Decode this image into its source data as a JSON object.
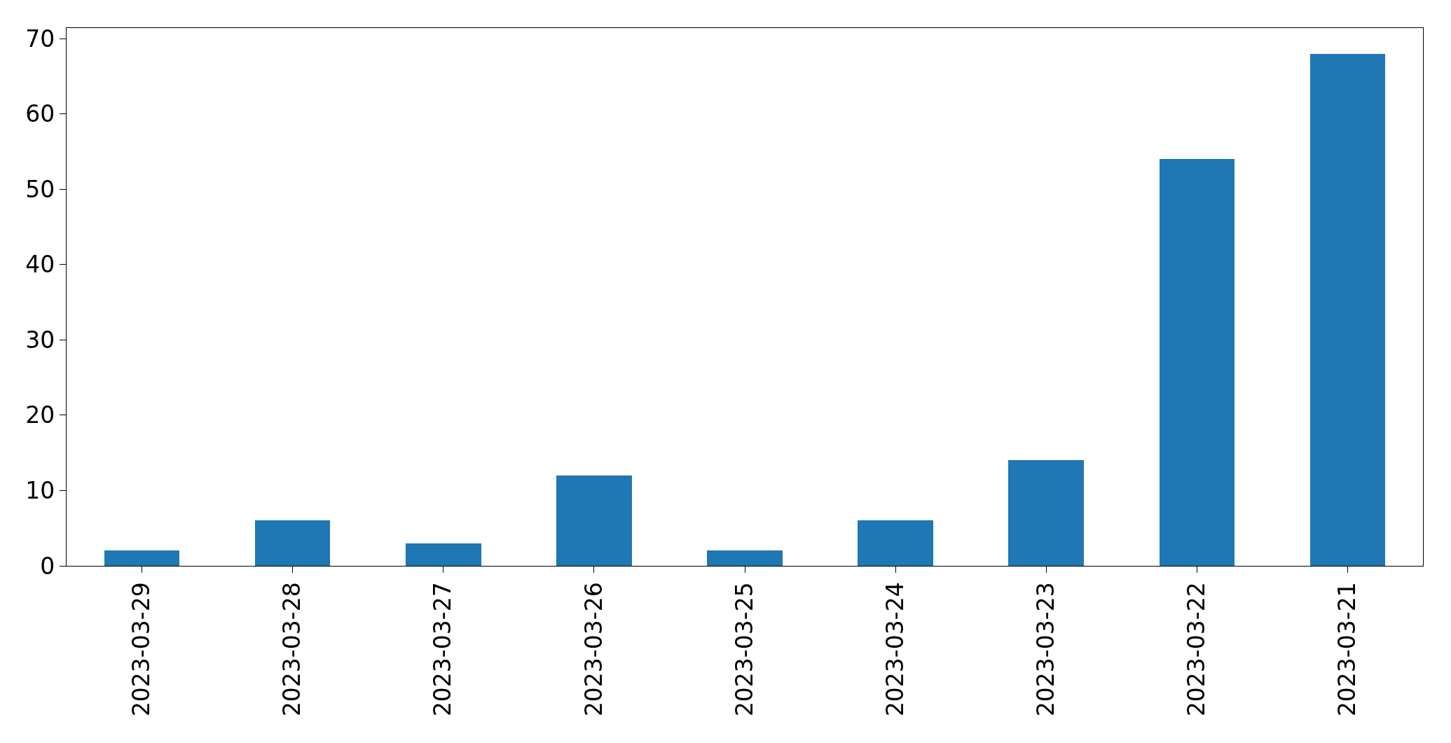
{
  "chart_data": {
    "type": "bar",
    "categories": [
      "2023-03-29",
      "2023-03-28",
      "2023-03-27",
      "2023-03-26",
      "2023-03-25",
      "2023-03-24",
      "2023-03-23",
      "2023-03-22",
      "2023-03-21"
    ],
    "values": [
      2,
      6,
      3,
      12,
      2,
      6,
      14,
      54,
      68
    ],
    "color": "#1f77b4",
    "ylim": [
      0,
      71.4
    ],
    "yticks": [
      0,
      10,
      20,
      30,
      40,
      50,
      60,
      70
    ]
  }
}
